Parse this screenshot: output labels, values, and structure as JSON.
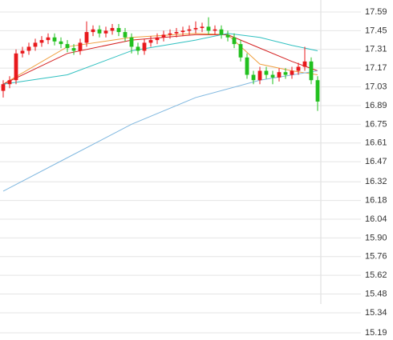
{
  "chart_data": {
    "type": "candlestick",
    "up_color": "#e8191c",
    "down_color": "#22c01f",
    "xlim": [
      -0.5,
      49.5
    ],
    "ylim": [
      15.19,
      17.59
    ],
    "yticks": [
      17.59,
      17.45,
      17.31,
      17.17,
      17.03,
      16.89,
      16.75,
      16.61,
      16.47,
      16.32,
      16.18,
      16.04,
      {
        "value": 15.9,
        "label": "15.90"
      },
      15.76,
      15.62,
      15.48,
      15.34,
      15.19
    ],
    "grid": true,
    "open": [
      17.0,
      17.05,
      17.08,
      17.28,
      17.3,
      17.33,
      17.36,
      17.38,
      17.4,
      17.37,
      17.35,
      17.32,
      17.3,
      17.36,
      17.44,
      17.46,
      17.43,
      17.45,
      17.47,
      17.44,
      17.4,
      17.33,
      17.3,
      17.36,
      17.38,
      17.4,
      17.42,
      17.43,
      17.44,
      17.45,
      17.46,
      17.47,
      17.48,
      17.45,
      17.46,
      17.42,
      17.4,
      17.35,
      17.25,
      17.12,
      17.08,
      17.15,
      17.12,
      17.1,
      17.14,
      17.12,
      17.15,
      17.18,
      17.22,
      17.08
    ],
    "high": [
      17.08,
      17.11,
      17.31,
      17.33,
      17.36,
      17.39,
      17.41,
      17.43,
      17.43,
      17.4,
      17.38,
      17.35,
      17.39,
      17.52,
      17.49,
      17.49,
      17.48,
      17.5,
      17.5,
      17.47,
      17.43,
      17.36,
      17.39,
      17.41,
      17.43,
      17.45,
      17.46,
      17.47,
      17.48,
      17.49,
      17.52,
      17.51,
      17.55,
      17.49,
      17.49,
      17.45,
      17.43,
      17.38,
      17.28,
      17.15,
      17.18,
      17.18,
      17.15,
      17.17,
      17.17,
      17.18,
      17.21,
      17.33,
      17.25,
      17.11
    ],
    "low": [
      16.95,
      17.02,
      17.05,
      17.25,
      17.27,
      17.3,
      17.33,
      17.35,
      17.34,
      17.32,
      17.29,
      17.27,
      17.27,
      17.33,
      17.41,
      17.4,
      17.4,
      17.42,
      17.41,
      17.37,
      17.28,
      17.27,
      17.27,
      17.33,
      17.35,
      17.37,
      17.39,
      17.4,
      17.41,
      17.42,
      17.43,
      17.44,
      17.42,
      17.42,
      17.39,
      17.37,
      17.32,
      17.22,
      17.09,
      17.05,
      17.05,
      17.09,
      17.05,
      17.07,
      17.09,
      17.09,
      17.12,
      17.15,
      17.05,
      16.85
    ],
    "close": [
      17.05,
      17.08,
      17.28,
      17.3,
      17.33,
      17.36,
      17.38,
      17.4,
      17.37,
      17.35,
      17.32,
      17.3,
      17.36,
      17.44,
      17.46,
      17.43,
      17.45,
      17.47,
      17.44,
      17.4,
      17.33,
      17.3,
      17.36,
      17.38,
      17.4,
      17.42,
      17.43,
      17.44,
      17.45,
      17.46,
      17.47,
      17.48,
      17.45,
      17.46,
      17.42,
      17.4,
      17.35,
      17.25,
      17.12,
      17.08,
      17.15,
      17.12,
      17.1,
      17.14,
      17.12,
      17.15,
      17.18,
      17.22,
      17.08,
      16.92
    ],
    "lines": [
      {
        "color": "#f0a040",
        "x": [
          0,
          10,
          20,
          30,
          35,
          40,
          45,
          49
        ],
        "values": [
          17.05,
          17.33,
          17.4,
          17.43,
          17.42,
          17.2,
          17.15,
          17.12
        ]
      },
      {
        "color": "#d42020",
        "x": [
          0,
          10,
          20,
          30,
          35,
          40,
          45,
          49
        ],
        "values": [
          17.05,
          17.28,
          17.38,
          17.42,
          17.42,
          17.32,
          17.22,
          17.15
        ]
      },
      {
        "color": "#30c0c0",
        "x": [
          0,
          10,
          20,
          30,
          35,
          40,
          45,
          49
        ],
        "values": [
          17.05,
          17.12,
          17.3,
          17.38,
          17.43,
          17.4,
          17.34,
          17.3
        ]
      },
      {
        "color": "#80b8e0",
        "x": [
          0,
          10,
          20,
          30,
          40,
          49
        ],
        "values": [
          16.25,
          16.5,
          16.75,
          16.95,
          17.08,
          17.15
        ]
      }
    ]
  }
}
